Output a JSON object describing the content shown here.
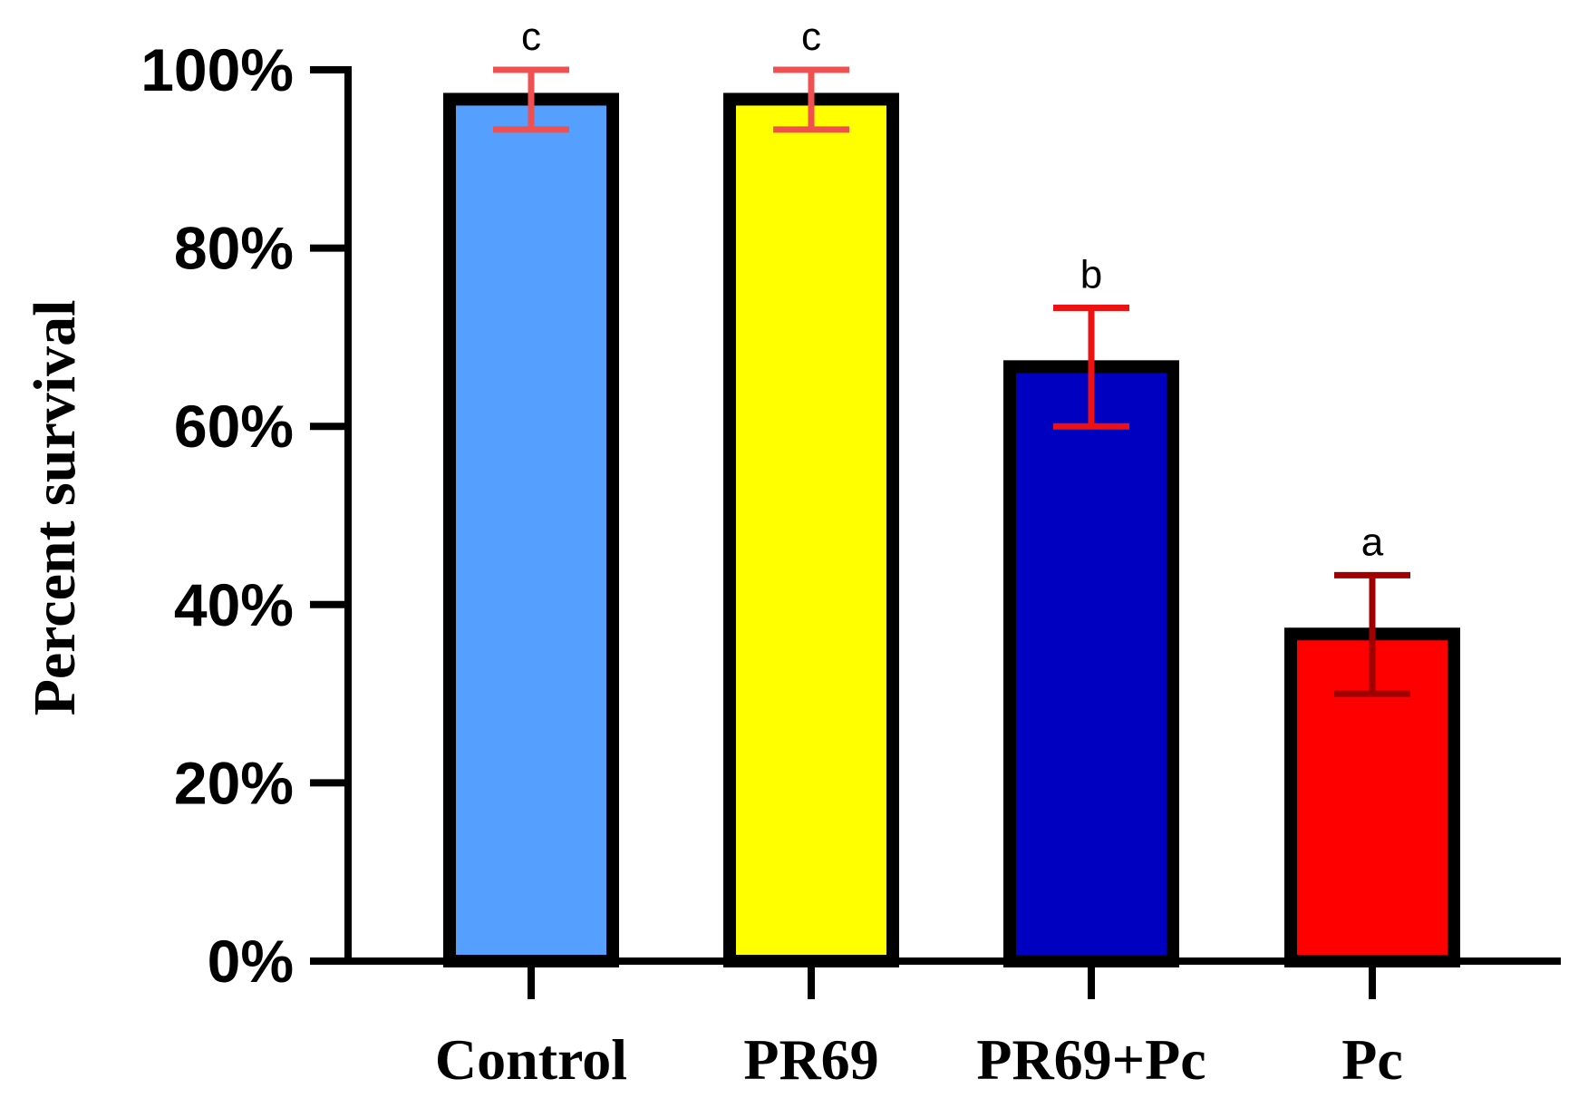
{
  "chart_data": {
    "type": "bar",
    "title": "",
    "xlabel": "",
    "ylabel": "Percent survival",
    "ylim": [
      0,
      100
    ],
    "y_ticks": [
      0,
      20,
      40,
      60,
      80,
      100
    ],
    "y_tick_labels": [
      "0%",
      "20%",
      "40%",
      "60%",
      "80%",
      "100%"
    ],
    "categories": [
      "Control",
      "PR69",
      "PR69+Pc",
      "Pc"
    ],
    "values": [
      96.7,
      96.7,
      66.7,
      36.7
    ],
    "error_low": [
      93.3,
      93.3,
      60.0,
      30.0
    ],
    "error_high": [
      100.0,
      100.0,
      73.3,
      43.3
    ],
    "significance_letters": [
      "c",
      "c",
      "b",
      "a"
    ],
    "bar_colors": [
      "#559FFF",
      "#FFFF00",
      "#0000C0",
      "#FF0000"
    ],
    "error_bar_colors": [
      "#F05050",
      "#F05050",
      "#EE1111",
      "#A00000"
    ],
    "grid": false,
    "legend": "none"
  }
}
